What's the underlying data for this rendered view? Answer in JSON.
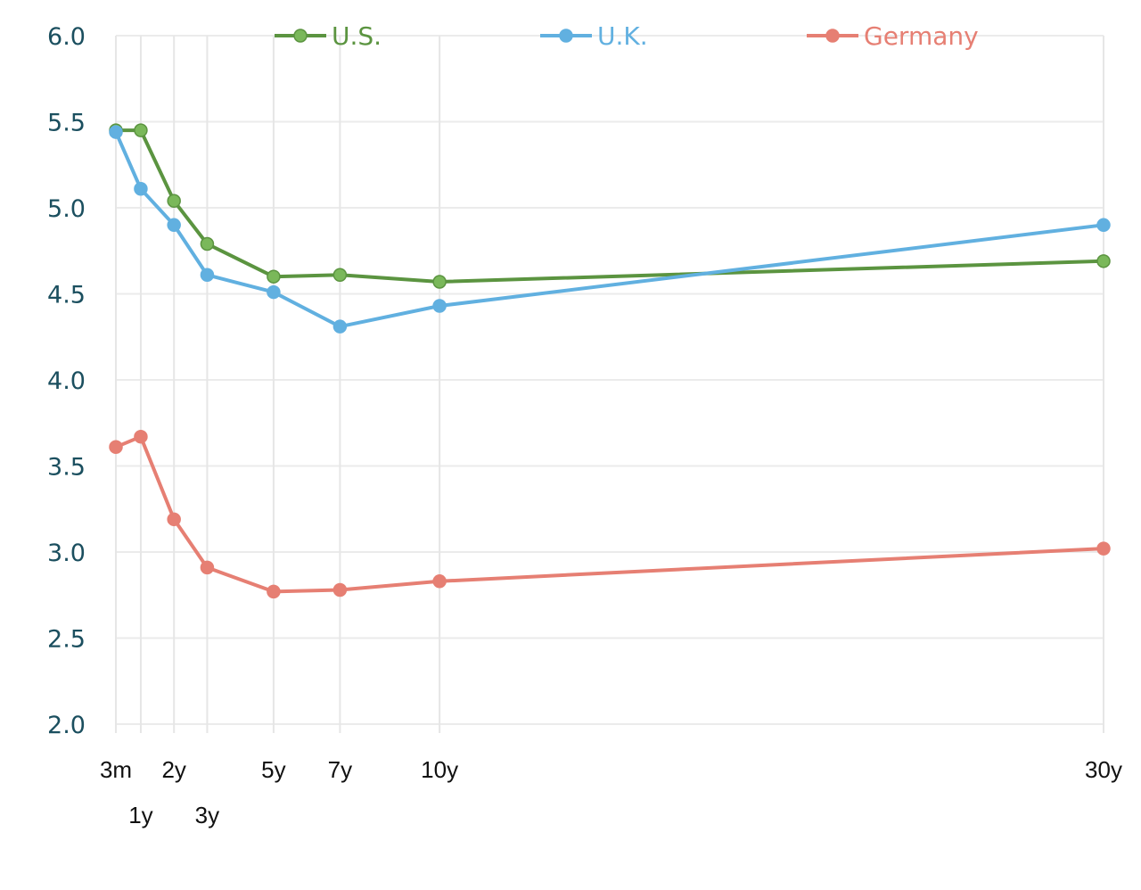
{
  "chart_data": {
    "type": "line",
    "x_positions": [
      0.25,
      1,
      2,
      3,
      5,
      7,
      10,
      30
    ],
    "categories": [
      "3m",
      "1y",
      "2y",
      "3y",
      "5y",
      "7y",
      "10y",
      "30y"
    ],
    "y_ticks": [
      "6.0",
      "5.5",
      "5.0",
      "4.5",
      "4.0",
      "3.5",
      "3.0",
      "2.5",
      "2.0"
    ],
    "ylim": [
      2.0,
      6.0
    ],
    "grid": true,
    "legend": "top",
    "series": [
      {
        "name": "U.S.",
        "color": "#5b9440",
        "marker_fill": "#7ab85a",
        "values": [
          5.45,
          5.45,
          5.04,
          4.79,
          4.6,
          4.61,
          4.57,
          4.69
        ]
      },
      {
        "name": "U.K.",
        "color": "#61b0e0",
        "marker_fill": "#61b0e0",
        "values": [
          5.44,
          5.11,
          4.9,
          4.61,
          4.51,
          4.31,
          4.43,
          4.9
        ]
      },
      {
        "name": "Germany",
        "color": "#e67f73",
        "marker_fill": "#e67f73",
        "values": [
          3.61,
          3.67,
          3.19,
          2.91,
          2.77,
          2.78,
          2.83,
          3.02
        ]
      }
    ]
  }
}
